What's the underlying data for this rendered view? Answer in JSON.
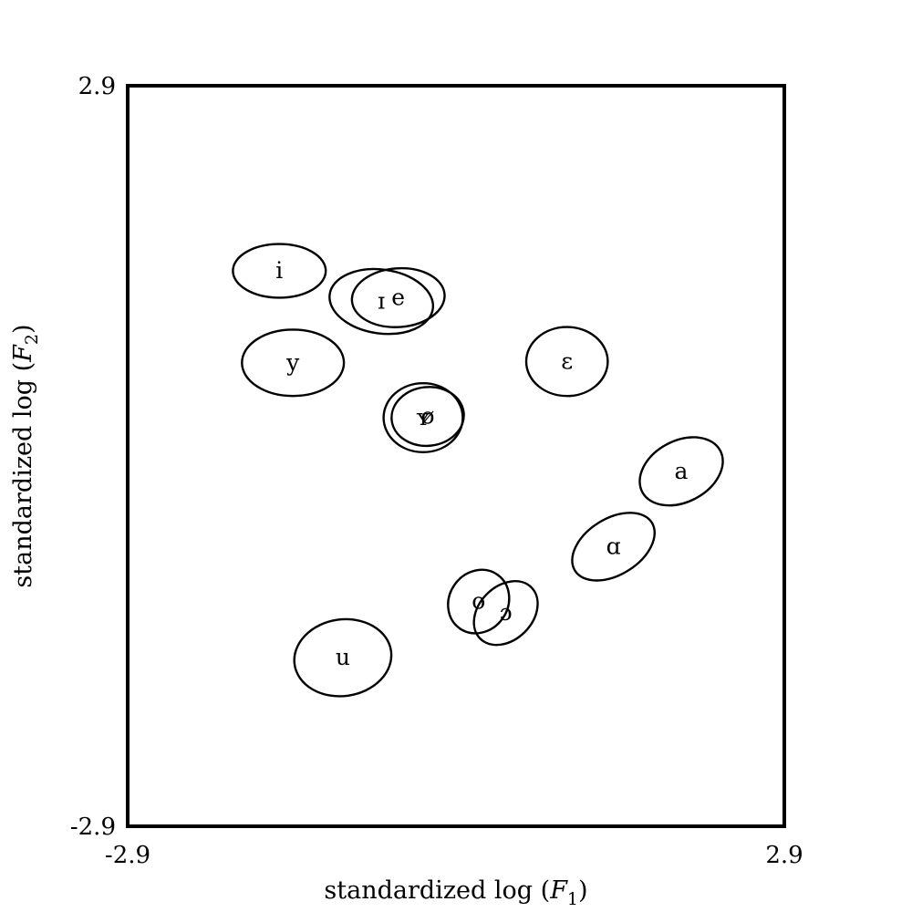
{
  "chart_data": {
    "type": "scatter",
    "title": "",
    "xlabel": {
      "prefix": "standardized log (",
      "var": "F",
      "sub": "1",
      "suffix": ")"
    },
    "ylabel": {
      "prefix": "standardized log (",
      "var": "F",
      "sub": "2",
      "suffix": ")"
    },
    "xlim": [
      -2.9,
      2.9
    ],
    "ylim": [
      -2.9,
      2.9
    ],
    "x_tick_labels": [
      "-2.9",
      "2.9"
    ],
    "y_tick_labels": [
      "-2.9",
      "2.9"
    ],
    "grid": false,
    "legend": "none",
    "series": [
      {
        "label": "i",
        "x": -1.56,
        "y": 1.45,
        "rx": 0.41,
        "ry": 0.21,
        "angle": 0
      },
      {
        "label": "ɪ",
        "x": -0.66,
        "y": 1.21,
        "rx": 0.46,
        "ry": 0.25,
        "angle": 8
      },
      {
        "label": "e",
        "x": -0.51,
        "y": 1.24,
        "rx": 0.41,
        "ry": 0.23,
        "angle": -4
      },
      {
        "label": "y",
        "x": -1.44,
        "y": 0.73,
        "rx": 0.45,
        "ry": 0.26,
        "angle": 0
      },
      {
        "label": "ɛ",
        "x": 0.98,
        "y": 0.74,
        "rx": 0.36,
        "ry": 0.27,
        "angle": 0
      },
      {
        "label": "ʏ",
        "x": -0.29,
        "y": 0.3,
        "rx": 0.35,
        "ry": 0.27,
        "angle": 0
      },
      {
        "label": "ø",
        "x": -0.25,
        "y": 0.31,
        "rx": 0.32,
        "ry": 0.23,
        "angle": -6
      },
      {
        "label": "a",
        "x": 1.99,
        "y": -0.12,
        "rx": 0.39,
        "ry": 0.24,
        "angle": -28
      },
      {
        "label": "ɑ",
        "x": 1.39,
        "y": -0.71,
        "rx": 0.4,
        "ry": 0.22,
        "angle": -32
      },
      {
        "label": "o",
        "x": 0.2,
        "y": -1.14,
        "rx": 0.29,
        "ry": 0.23,
        "angle": -55
      },
      {
        "label": "ɔ",
        "x": 0.44,
        "y": -1.23,
        "rx": 0.32,
        "ry": 0.21,
        "angle": -45
      },
      {
        "label": "u",
        "x": -1.0,
        "y": -1.58,
        "rx": 0.43,
        "ry": 0.3,
        "angle": -8
      }
    ]
  }
}
